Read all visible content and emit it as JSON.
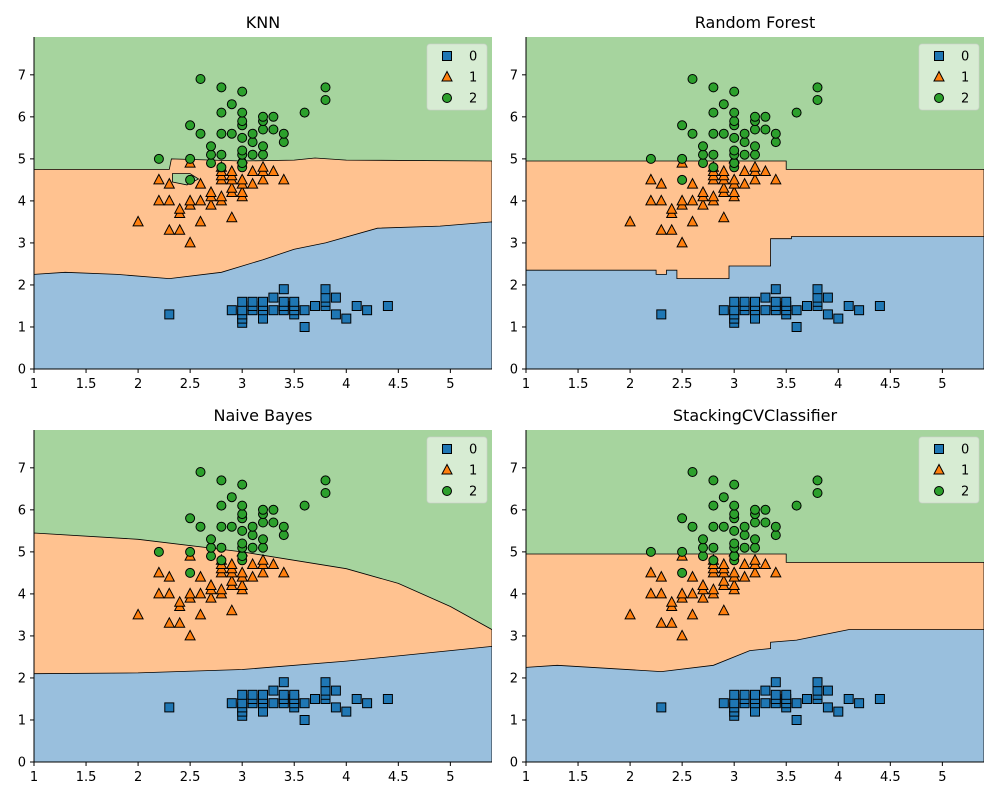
{
  "figure": {
    "colors": {
      "c0": "#1f77b4",
      "c1": "#ff7f0e",
      "c2": "#2ca02c",
      "r0": "#99bfdd",
      "r1": "#ffc290",
      "r2": "#a6d49e"
    },
    "legend": {
      "labels": [
        "0",
        "1",
        "2"
      ],
      "markers": [
        "square",
        "triangle",
        "circle"
      ],
      "placement": "top-right"
    }
  },
  "chart_data": [
    {
      "type": "scatter",
      "title": "KNN",
      "xlim": [
        1.0,
        5.4
      ],
      "ylim": [
        0,
        7.9
      ],
      "xticks": [
        1.0,
        1.5,
        2.0,
        2.5,
        3.0,
        3.5,
        4.0,
        4.5,
        5.0
      ],
      "yticks": [
        0,
        1,
        2,
        3,
        4,
        5,
        6,
        7
      ],
      "boundary_low": [
        [
          1.0,
          2.25
        ],
        [
          1.3,
          2.3
        ],
        [
          1.8,
          2.25
        ],
        [
          2.3,
          2.15
        ],
        [
          2.8,
          2.3
        ],
        [
          3.2,
          2.6
        ],
        [
          3.5,
          2.85
        ],
        [
          3.8,
          3.0
        ],
        [
          4.3,
          3.35
        ],
        [
          4.9,
          3.4
        ],
        [
          5.4,
          3.5
        ]
      ],
      "boundary_high": [
        [
          1.0,
          4.75
        ],
        [
          2.3,
          4.75
        ],
        [
          2.32,
          5.0
        ],
        [
          3.0,
          4.95
        ],
        [
          3.5,
          4.97
        ],
        [
          3.7,
          5.02
        ],
        [
          4.0,
          4.97
        ],
        [
          5.4,
          4.95
        ]
      ]
    },
    {
      "type": "scatter",
      "title": "Random Forest",
      "xlim": [
        1.0,
        5.4
      ],
      "ylim": [
        0,
        7.9
      ],
      "xticks": [
        1.0,
        1.5,
        2.0,
        2.5,
        3.0,
        3.5,
        4.0,
        4.5,
        5.0
      ],
      "yticks": [
        0,
        1,
        2,
        3,
        4,
        5,
        6,
        7
      ],
      "boundary_low": [
        [
          1.0,
          2.35
        ],
        [
          2.25,
          2.35
        ],
        [
          2.25,
          2.25
        ],
        [
          2.35,
          2.25
        ],
        [
          2.35,
          2.35
        ],
        [
          2.45,
          2.35
        ],
        [
          2.45,
          2.15
        ],
        [
          2.95,
          2.15
        ],
        [
          2.95,
          2.45
        ],
        [
          3.35,
          2.45
        ],
        [
          3.35,
          3.1
        ],
        [
          3.55,
          3.1
        ],
        [
          3.55,
          3.15
        ],
        [
          5.4,
          3.15
        ]
      ],
      "boundary_high": [
        [
          1.0,
          4.95
        ],
        [
          3.5,
          4.95
        ],
        [
          3.5,
          4.75
        ],
        [
          5.4,
          4.75
        ]
      ]
    },
    {
      "type": "scatter",
      "title": "Naive Bayes",
      "xlim": [
        1.0,
        5.4
      ],
      "ylim": [
        0,
        7.9
      ],
      "xticks": [
        1.0,
        1.5,
        2.0,
        2.5,
        3.0,
        3.5,
        4.0,
        4.5,
        5.0
      ],
      "yticks": [
        0,
        1,
        2,
        3,
        4,
        5,
        6,
        7
      ],
      "boundary_low": [
        [
          1.0,
          2.1
        ],
        [
          2.0,
          2.12
        ],
        [
          3.0,
          2.2
        ],
        [
          4.0,
          2.4
        ],
        [
          5.0,
          2.65
        ],
        [
          5.4,
          2.75
        ]
      ],
      "boundary_high": [
        [
          1.0,
          5.45
        ],
        [
          2.0,
          5.3
        ],
        [
          3.0,
          5.0
        ],
        [
          4.0,
          4.6
        ],
        [
          4.5,
          4.25
        ],
        [
          5.0,
          3.7
        ],
        [
          5.4,
          3.15
        ]
      ]
    },
    {
      "type": "scatter",
      "title": "StackingCVClassifier",
      "xlim": [
        1.0,
        5.4
      ],
      "ylim": [
        0,
        7.9
      ],
      "xticks": [
        1.0,
        1.5,
        2.0,
        2.5,
        3.0,
        3.5,
        4.0,
        4.5,
        5.0
      ],
      "yticks": [
        0,
        1,
        2,
        3,
        4,
        5,
        6,
        7
      ],
      "boundary_low": [
        [
          1.0,
          2.25
        ],
        [
          1.3,
          2.3
        ],
        [
          2.3,
          2.15
        ],
        [
          2.8,
          2.3
        ],
        [
          3.15,
          2.65
        ],
        [
          3.35,
          2.7
        ],
        [
          3.35,
          2.85
        ],
        [
          3.6,
          2.9
        ],
        [
          4.1,
          3.15
        ],
        [
          5.4,
          3.15
        ]
      ],
      "boundary_high": [
        [
          1.0,
          4.95
        ],
        [
          3.5,
          4.95
        ],
        [
          3.5,
          4.75
        ],
        [
          5.4,
          4.75
        ]
      ]
    }
  ],
  "points": {
    "class0": [
      [
        2.3,
        1.3
      ],
      [
        2.9,
        1.4
      ],
      [
        3.0,
        1.1
      ],
      [
        3.0,
        1.2
      ],
      [
        3.0,
        1.3
      ],
      [
        3.0,
        1.4
      ],
      [
        3.0,
        1.6
      ],
      [
        3.1,
        1.4
      ],
      [
        3.1,
        1.5
      ],
      [
        3.1,
        1.6
      ],
      [
        3.2,
        1.2
      ],
      [
        3.2,
        1.4
      ],
      [
        3.2,
        1.5
      ],
      [
        3.2,
        1.6
      ],
      [
        3.3,
        1.4
      ],
      [
        3.3,
        1.7
      ],
      [
        3.4,
        1.4
      ],
      [
        3.4,
        1.5
      ],
      [
        3.4,
        1.6
      ],
      [
        3.4,
        1.9
      ],
      [
        3.5,
        1.3
      ],
      [
        3.5,
        1.4
      ],
      [
        3.5,
        1.5
      ],
      [
        3.5,
        1.6
      ],
      [
        3.6,
        1.0
      ],
      [
        3.6,
        1.4
      ],
      [
        3.7,
        1.5
      ],
      [
        3.8,
        1.5
      ],
      [
        3.8,
        1.6
      ],
      [
        3.8,
        1.7
      ],
      [
        3.8,
        1.9
      ],
      [
        3.9,
        1.3
      ],
      [
        3.9,
        1.7
      ],
      [
        4.0,
        1.2
      ],
      [
        4.1,
        1.5
      ],
      [
        4.2,
        1.4
      ],
      [
        4.4,
        1.5
      ]
    ],
    "class1": [
      [
        2.0,
        3.5
      ],
      [
        2.2,
        4.0
      ],
      [
        2.2,
        4.5
      ],
      [
        2.3,
        3.3
      ],
      [
        2.3,
        4.0
      ],
      [
        2.3,
        4.4
      ],
      [
        2.4,
        3.3
      ],
      [
        2.4,
        3.7
      ],
      [
        2.4,
        3.8
      ],
      [
        2.5,
        3.0
      ],
      [
        2.5,
        3.9
      ],
      [
        2.5,
        4.0
      ],
      [
        2.5,
        4.9
      ],
      [
        2.6,
        3.5
      ],
      [
        2.6,
        4.0
      ],
      [
        2.6,
        4.4
      ],
      [
        2.7,
        3.9
      ],
      [
        2.7,
        4.1
      ],
      [
        2.7,
        4.2
      ],
      [
        2.8,
        4.0
      ],
      [
        2.8,
        4.1
      ],
      [
        2.8,
        4.5
      ],
      [
        2.8,
        4.6
      ],
      [
        2.8,
        4.7
      ],
      [
        2.8,
        4.8
      ],
      [
        2.9,
        3.6
      ],
      [
        2.9,
        4.2
      ],
      [
        2.9,
        4.3
      ],
      [
        2.9,
        4.5
      ],
      [
        2.9,
        4.6
      ],
      [
        2.9,
        4.7
      ],
      [
        3.0,
        4.1
      ],
      [
        3.0,
        4.2
      ],
      [
        3.0,
        4.4
      ],
      [
        3.0,
        4.5
      ],
      [
        3.0,
        5.0
      ],
      [
        3.1,
        4.4
      ],
      [
        3.1,
        4.7
      ],
      [
        3.2,
        4.5
      ],
      [
        3.2,
        4.7
      ],
      [
        3.2,
        4.8
      ],
      [
        3.3,
        4.7
      ],
      [
        3.4,
        4.5
      ]
    ],
    "class2": [
      [
        2.2,
        5.0
      ],
      [
        2.5,
        4.5
      ],
      [
        2.5,
        5.0
      ],
      [
        2.5,
        5.8
      ],
      [
        2.6,
        5.6
      ],
      [
        2.6,
        6.9
      ],
      [
        2.7,
        4.9
      ],
      [
        2.7,
        5.1
      ],
      [
        2.7,
        5.3
      ],
      [
        2.8,
        4.8
      ],
      [
        2.8,
        5.1
      ],
      [
        2.8,
        5.6
      ],
      [
        2.8,
        6.1
      ],
      [
        2.8,
        6.7
      ],
      [
        2.9,
        5.6
      ],
      [
        2.9,
        6.3
      ],
      [
        3.0,
        4.8
      ],
      [
        3.0,
        4.9
      ],
      [
        3.0,
        5.1
      ],
      [
        3.0,
        5.2
      ],
      [
        3.0,
        5.5
      ],
      [
        3.0,
        5.8
      ],
      [
        3.0,
        5.9
      ],
      [
        3.0,
        6.1
      ],
      [
        3.0,
        6.6
      ],
      [
        3.1,
        5.1
      ],
      [
        3.1,
        5.4
      ],
      [
        3.1,
        5.6
      ],
      [
        3.2,
        5.1
      ],
      [
        3.2,
        5.3
      ],
      [
        3.2,
        5.7
      ],
      [
        3.2,
        5.9
      ],
      [
        3.2,
        6.0
      ],
      [
        3.3,
        5.7
      ],
      [
        3.3,
        6.0
      ],
      [
        3.4,
        5.4
      ],
      [
        3.4,
        5.6
      ],
      [
        3.6,
        6.1
      ],
      [
        3.8,
        6.4
      ],
      [
        3.8,
        6.7
      ]
    ]
  }
}
